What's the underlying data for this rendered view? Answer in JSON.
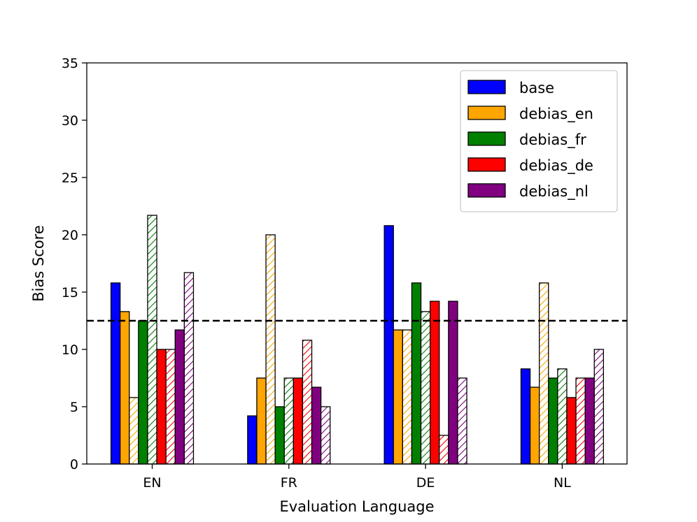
{
  "chart_data": {
    "type": "bar",
    "title": "",
    "xlabel": "Evaluation Language",
    "ylabel": "Bias Score",
    "ylim": [
      0,
      35
    ],
    "yticks": [
      0,
      5,
      10,
      15,
      20,
      25,
      30,
      35
    ],
    "categories": [
      "EN",
      "FR",
      "DE",
      "NL"
    ],
    "reference_line": {
      "value": 12.5,
      "style": "dashed",
      "color": "#000000"
    },
    "legend_position": "top-right",
    "bars_per_group": [
      {
        "series": "base",
        "hatched": false,
        "values": [
          15.8,
          4.2,
          20.8,
          8.3
        ]
      },
      {
        "series": "debias_en",
        "hatched": false,
        "values": [
          13.3,
          7.5,
          11.7,
          6.7
        ]
      },
      {
        "series": "debias_en",
        "hatched": true,
        "values": [
          5.8,
          20.0,
          11.7,
          15.8
        ]
      },
      {
        "series": "debias_fr",
        "hatched": false,
        "values": [
          12.5,
          5.0,
          15.8,
          7.5
        ]
      },
      {
        "series": "debias_fr",
        "hatched": true,
        "values": [
          21.7,
          7.5,
          13.3,
          8.3
        ]
      },
      {
        "series": "debias_de",
        "hatched": false,
        "values": [
          10.0,
          7.5,
          14.2,
          5.8
        ]
      },
      {
        "series": "debias_de",
        "hatched": true,
        "values": [
          10.0,
          10.8,
          2.5,
          7.5
        ]
      },
      {
        "series": "debias_nl",
        "hatched": false,
        "values": [
          11.7,
          6.7,
          14.2,
          7.5
        ]
      },
      {
        "series": "debias_nl",
        "hatched": true,
        "values": [
          16.7,
          5.0,
          7.5,
          10.0
        ]
      }
    ],
    "series": [
      {
        "name": "base",
        "color": "#0000ff"
      },
      {
        "name": "debias_en",
        "color": "#ffa500"
      },
      {
        "name": "debias_fr",
        "color": "#008000"
      },
      {
        "name": "debias_de",
        "color": "#ff0000"
      },
      {
        "name": "debias_nl",
        "color": "#800080"
      }
    ]
  }
}
